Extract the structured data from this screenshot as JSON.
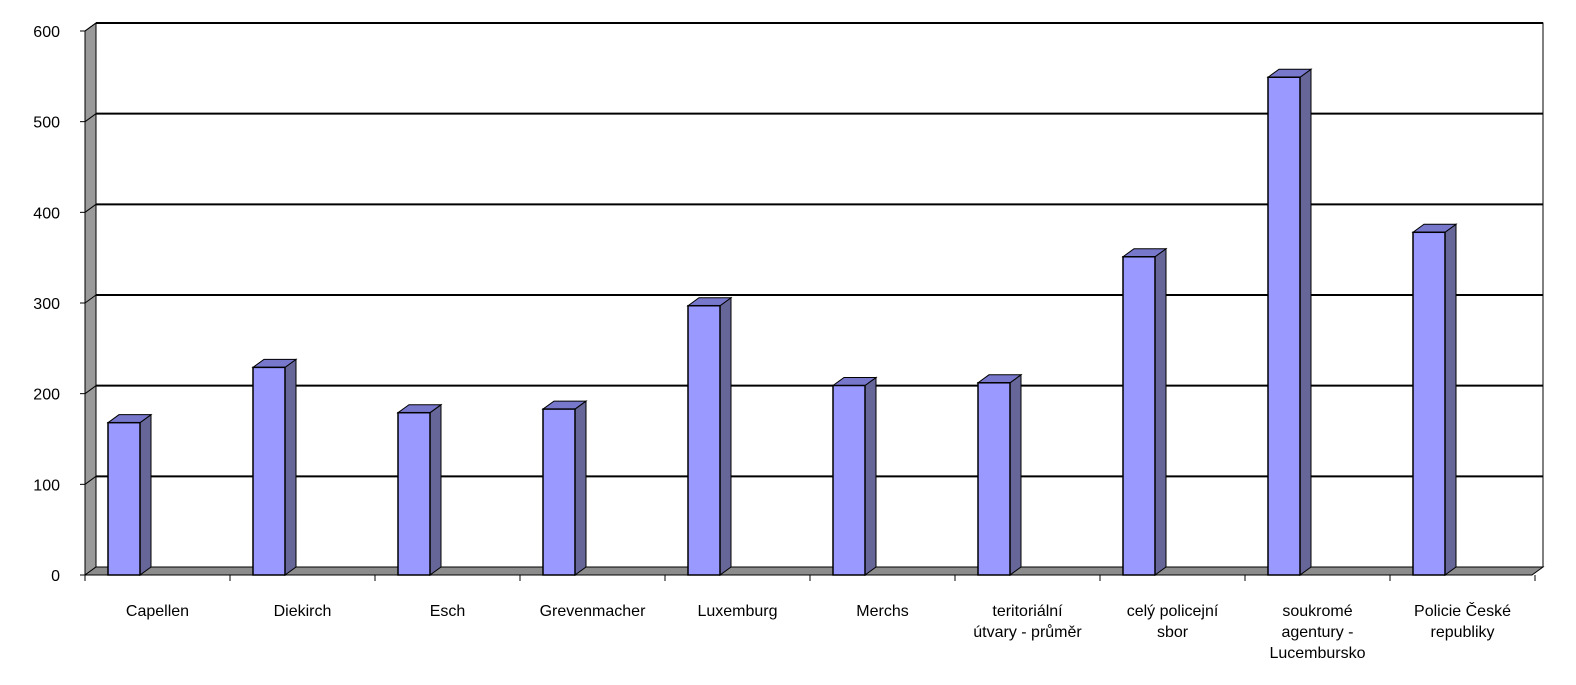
{
  "chart_data": {
    "type": "bar",
    "title": "",
    "xlabel": "",
    "ylabel": "",
    "ylim": [
      0,
      600
    ],
    "yticks": [
      0,
      100,
      200,
      300,
      400,
      500,
      600
    ],
    "grid": true,
    "legend": "none",
    "categories": [
      "Capellen",
      "Diekirch",
      "Esch",
      "Grevenmacher",
      "Luxemburg",
      "Merchs",
      "teritoriální útvary - průměr",
      "celý policejní sbor",
      "soukromé agentury - Lucembursko",
      "Policie České republiky"
    ],
    "category_lines": [
      [
        "Capellen"
      ],
      [
        "Diekirch"
      ],
      [
        "Esch"
      ],
      [
        "Grevenmacher"
      ],
      [
        "Luxemburg"
      ],
      [
        "Merchs"
      ],
      [
        "teritoriální",
        "útvary - průměr"
      ],
      [
        "celý policejní",
        "sbor"
      ],
      [
        "soukromé",
        "agentury -",
        "Lucembursko"
      ],
      [
        "Policie České",
        "republiky"
      ]
    ],
    "values": [
      168,
      229,
      179,
      183,
      297,
      209,
      212,
      351,
      549,
      378
    ],
    "colors": {
      "bar_front": "#9999ff",
      "bar_side": "#666699",
      "bar_top": "#7777cc",
      "wall": "#9a9a9a",
      "floor": "#8c8c8c"
    }
  }
}
